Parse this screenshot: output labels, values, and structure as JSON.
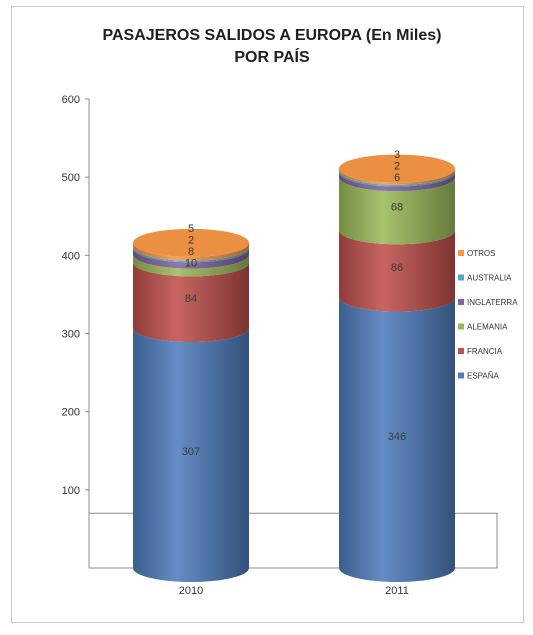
{
  "chart_data": {
    "type": "bar",
    "stacked": true,
    "style": "3d-cylinder",
    "title": "PASAJEROS SALIDOS A EUROPA (En Miles)",
    "subtitle": "POR PAÍS",
    "categories": [
      "2010",
      "2011"
    ],
    "series": [
      {
        "name": "ESPAÑA",
        "color": "#4f7dbd",
        "values": [
          307,
          346
        ]
      },
      {
        "name": "FRANCIA",
        "color": "#c0504d",
        "values": [
          84,
          86
        ]
      },
      {
        "name": "ALEMANIA",
        "color": "#9bbb59",
        "values": [
          10,
          68
        ]
      },
      {
        "name": "INGLATERRA",
        "color": "#8064a2",
        "values": [
          8,
          6
        ]
      },
      {
        "name": "AUSTRALIA",
        "color": "#4bacc6",
        "values": [
          2,
          2
        ]
      },
      {
        "name": "OTROS",
        "color": "#f79646",
        "values": [
          5,
          3
        ]
      }
    ],
    "ylim": [
      0,
      600
    ],
    "yticks": [
      100,
      200,
      300,
      400,
      500,
      600
    ],
    "grid": false,
    "legend_position": "right"
  }
}
